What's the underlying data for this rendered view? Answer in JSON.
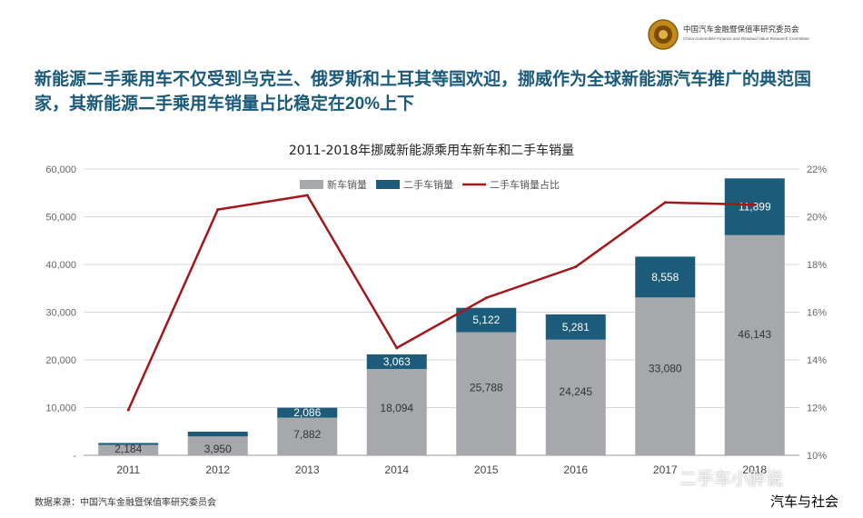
{
  "header": {
    "org_name_cn": "中国汽车金融暨保值率研究委员会",
    "org_name_en": "China Automobile Finance and Residual Value Research Committee"
  },
  "headline": "新能源二手乘用车不仅受到乌克兰、俄罗斯和土耳其等国欢迎，挪威作为全球新能源汽车推广的典范国家，其新能源二手乘用车销量占比稳定在20%上下",
  "footer": {
    "source": "数据来源：中国汽车金融暨保值率研究委员会",
    "watermark": "二手车小胖说",
    "watermark2": "汽车与社会"
  },
  "colors": {
    "new": "#a6a8ab",
    "used": "#1c5b7a",
    "ratio": "#a3171b",
    "title": "#1a5a7a"
  },
  "chart_data": {
    "type": "bar",
    "title": "2011-2018年挪威新能源乘用车新车和二手车销量",
    "stacked": true,
    "categories": [
      "2011",
      "2012",
      "2013",
      "2014",
      "2015",
      "2016",
      "2017",
      "2018"
    ],
    "series": [
      {
        "name": "新车销量",
        "values": [
          2184,
          3950,
          7882,
          18094,
          25788,
          24245,
          33080,
          46143
        ],
        "labels": [
          "2,184",
          "3,950",
          "7,882",
          "18,094",
          "25,788",
          "24,245",
          "33,080",
          "46,143"
        ]
      },
      {
        "name": "二手车销量",
        "values": [
          400,
          1000,
          2086,
          3063,
          5122,
          5281,
          8558,
          11899
        ],
        "labels": [
          "",
          "",
          "2,086",
          "3,063",
          "5,122",
          "5,281",
          "8,558",
          "11,899"
        ]
      },
      {
        "name": "二手车销量占比",
        "type": "line",
        "axis": "right",
        "values": [
          11.9,
          20.3,
          20.9,
          14.5,
          16.6,
          17.9,
          20.6,
          20.5
        ]
      }
    ],
    "ylim": [
      0,
      60000
    ],
    "yticks": [
      0,
      10000,
      20000,
      30000,
      40000,
      50000,
      60000
    ],
    "ytick_labels": [
      "-",
      "10,000",
      "20,000",
      "30,000",
      "40,000",
      "50,000",
      "60,000"
    ],
    "y2lim": [
      10,
      22
    ],
    "y2ticks": [
      10,
      12,
      14,
      16,
      18,
      20,
      22
    ],
    "y2tick_labels": [
      "10%",
      "12%",
      "14%",
      "16%",
      "18%",
      "20%",
      "22%"
    ],
    "legend_position": "top-center",
    "grid": true
  }
}
